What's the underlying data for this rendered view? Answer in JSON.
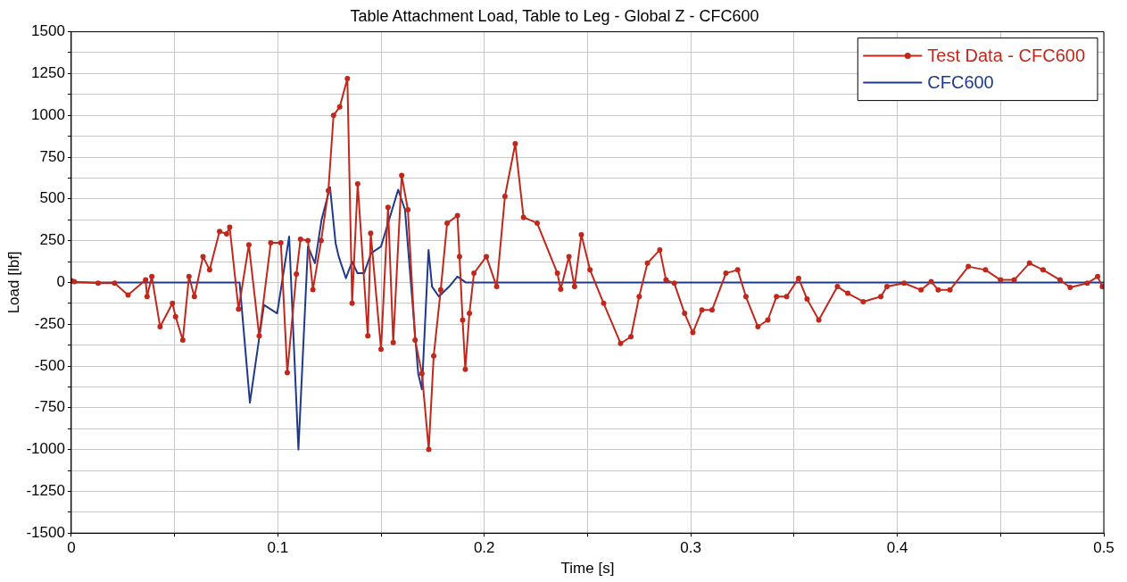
{
  "chart_data": {
    "type": "line",
    "title": "Table Attachment Load, Table to Leg - Global Z - CFC600",
    "xlabel": "Time [s]",
    "ylabel": "Load [lbf]",
    "xlim": [
      0,
      0.5
    ],
    "ylim": [
      -1500,
      1500
    ],
    "xticks": [
      0,
      {
        "value": 0.05,
        "label": null
      },
      0.1,
      {
        "value": 0.15,
        "label": null
      },
      0.2,
      {
        "value": 0.25,
        "label": null
      },
      0.3,
      {
        "value": 0.35,
        "label": null
      },
      0.4,
      {
        "value": 0.45,
        "label": null
      },
      0.5
    ],
    "yticks": [
      -1500,
      {
        "value": -1375,
        "label": null
      },
      -1250,
      {
        "value": -1125,
        "label": null
      },
      -1000,
      {
        "value": -875,
        "label": null
      },
      -750,
      {
        "value": -625,
        "label": null
      },
      -500,
      {
        "value": -375,
        "label": null
      },
      -250,
      {
        "value": -125,
        "label": null
      },
      0,
      {
        "value": 125,
        "label": null
      },
      250,
      {
        "value": 375,
        "label": null
      },
      500,
      {
        "value": 625,
        "label": null
      },
      750,
      {
        "value": 875,
        "label": null
      },
      1000,
      {
        "value": 1125,
        "label": null
      },
      1250,
      {
        "value": 1375,
        "label": null
      },
      1500
    ],
    "grid": true,
    "legend": "top right",
    "series": [
      {
        "name": "Test Data - CFC600",
        "color": "#c0281c",
        "marker": "circle",
        "x": [
          0,
          0.0014,
          0.013,
          0.021,
          0.0275,
          0.036,
          0.0367,
          0.039,
          0.043,
          0.049,
          0.0505,
          0.054,
          0.057,
          0.0596,
          0.0638,
          0.067,
          0.0718,
          0.0752,
          0.0767,
          0.081,
          0.086,
          0.091,
          0.0966,
          0.1015,
          0.1046,
          0.109,
          0.111,
          0.1146,
          0.117,
          0.121,
          0.1245,
          0.127,
          0.13,
          0.1337,
          0.136,
          0.1387,
          0.1436,
          0.145,
          0.15,
          0.1534,
          0.1559,
          0.16,
          0.163,
          0.1665,
          0.1698,
          0.1731,
          0.1755,
          0.1789,
          0.182,
          0.187,
          0.188,
          0.1895,
          0.1908,
          0.1928,
          0.195,
          0.201,
          0.206,
          0.21,
          0.215,
          0.219,
          0.2256,
          0.2354,
          0.237,
          0.241,
          0.2437,
          0.247,
          0.2512,
          0.2578,
          0.266,
          0.271,
          0.275,
          0.279,
          0.285,
          0.288,
          0.292,
          0.297,
          0.301,
          0.3054,
          0.3103,
          0.317,
          0.3227,
          0.3267,
          0.3325,
          0.3373,
          0.3415,
          0.3464,
          0.3522,
          0.3563,
          0.362,
          0.371,
          0.376,
          0.3835,
          0.392,
          0.395,
          0.4033,
          0.4115,
          0.4164,
          0.4198,
          0.4255,
          0.4344,
          0.4427,
          0.45,
          0.4566,
          0.464,
          0.4706,
          0.4788,
          0.4837,
          0.492,
          0.497,
          0.4993
        ],
        "values": [
          10,
          5,
          -5,
          -5,
          -75,
          15,
          -85,
          35,
          -265,
          -125,
          -205,
          -345,
          35,
          -85,
          155,
          75,
          305,
          290,
          330,
          -160,
          225,
          -320,
          237,
          237,
          -540,
          50,
          258,
          250,
          -43,
          250,
          550,
          1000,
          1050,
          1220,
          -125,
          590,
          -320,
          295,
          -400,
          450,
          -360,
          640,
          435,
          -345,
          -545,
          -1000,
          -440,
          -45,
          355,
          400,
          155,
          -225,
          -520,
          -185,
          55,
          155,
          -25,
          515,
          830,
          390,
          355,
          55,
          -40,
          155,
          -25,
          285,
          75,
          -125,
          -365,
          -325,
          -85,
          115,
          195,
          15,
          -5,
          -185,
          -300,
          -165,
          -165,
          55,
          75,
          -85,
          -265,
          -225,
          -85,
          -85,
          25,
          -100,
          -225,
          -25,
          -65,
          -115,
          -85,
          -25,
          -5,
          -45,
          5,
          -45,
          -45,
          95,
          75,
          15,
          15,
          115,
          75,
          15,
          -30,
          -5,
          35,
          -25
        ]
      },
      {
        "name": "CFC600",
        "color": "#1f3a8a",
        "marker": "none",
        "x": [
          0,
          0.0815,
          0.0865,
          0.0933,
          0.0997,
          0.1055,
          0.11,
          0.1146,
          0.118,
          0.1212,
          0.1253,
          0.128,
          0.1295,
          0.133,
          0.136,
          0.1386,
          0.1418,
          0.1452,
          0.15,
          0.1583,
          0.1616,
          0.168,
          0.1698,
          0.173,
          0.1747,
          0.178,
          0.183,
          0.187,
          0.191,
          0.5
        ],
        "values": [
          0,
          0,
          -720,
          -135,
          -185,
          275,
          -1000,
          215,
          115,
          375,
          570,
          235,
          155,
          25,
          125,
          55,
          55,
          175,
          215,
          555,
          435,
          -545,
          -640,
          195,
          -25,
          -85,
          -25,
          35,
          0,
          0
        ]
      }
    ]
  }
}
